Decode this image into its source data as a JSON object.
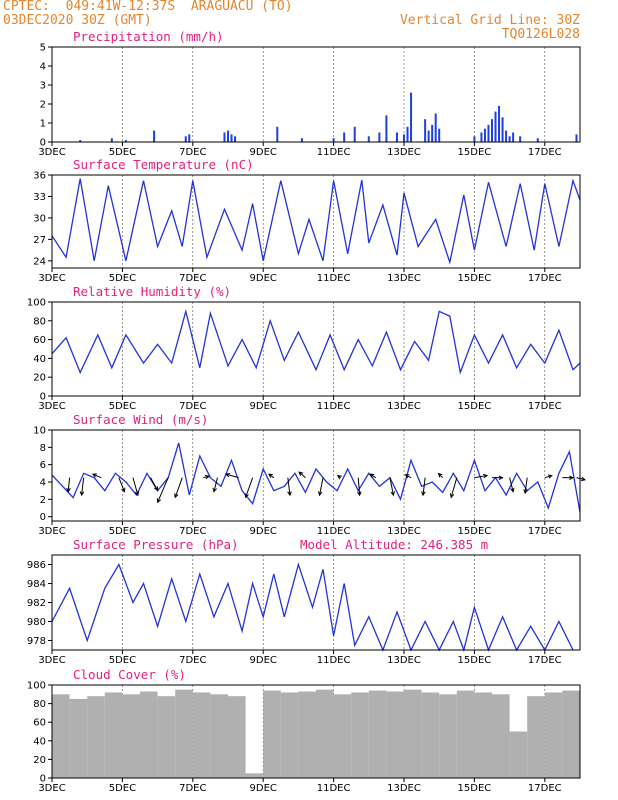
{
  "header": {
    "line1": "CPTEC:  049:41W-12:37S  ARAGUACU (TO)",
    "line2": "03DEC2020 30Z (GMT)",
    "grid_note": "Vertical Grid Line: 30Z",
    "code": "TQ0126L028"
  },
  "x_ticks": [
    "3DEC",
    "5DEC",
    "7DEC",
    "9DEC",
    "11DEC",
    "13DEC",
    "15DEC",
    "17DEC"
  ],
  "x_range_days": [
    3,
    18
  ],
  "chart_data": [
    {
      "type": "bar",
      "title": "Precipitation (mm/h)",
      "ylim": [
        0,
        5
      ],
      "yticks": [
        0,
        1,
        2,
        3,
        4,
        5
      ],
      "color": "#1f3fe0",
      "x": [
        3.8,
        4.7,
        5.1,
        5.9,
        6.8,
        6.9,
        7.9,
        8.0,
        8.1,
        8.2,
        9.4,
        10.1,
        11.0,
        11.3,
        11.6,
        12.0,
        12.3,
        12.5,
        12.8,
        13.0,
        13.1,
        13.2,
        13.6,
        13.7,
        13.8,
        13.9,
        14.0,
        15.0,
        15.2,
        15.3,
        15.4,
        15.5,
        15.6,
        15.7,
        15.8,
        15.9,
        16.0,
        16.1,
        16.3,
        16.8,
        17.9
      ],
      "values": [
        0.1,
        0.2,
        0.1,
        0.6,
        0.3,
        0.4,
        0.5,
        0.6,
        0.4,
        0.3,
        0.8,
        0.2,
        0.2,
        0.5,
        0.8,
        0.3,
        0.5,
        1.4,
        0.5,
        0.4,
        0.8,
        2.6,
        1.2,
        0.6,
        0.9,
        1.5,
        0.7,
        0.3,
        0.5,
        0.7,
        0.9,
        1.2,
        1.6,
        1.9,
        1.3,
        0.6,
        0.3,
        0.5,
        0.3,
        0.2,
        0.4
      ]
    },
    {
      "type": "line",
      "title": "Surface Temperature (nC)",
      "ylim": [
        23,
        36
      ],
      "yticks": [
        24,
        27,
        30,
        33,
        36
      ],
      "color": "#2233dd",
      "x": [
        3.0,
        3.4,
        3.8,
        4.2,
        4.6,
        5.1,
        5.6,
        6.0,
        6.4,
        6.7,
        7.0,
        7.4,
        7.9,
        8.4,
        8.7,
        9.0,
        9.5,
        10.0,
        10.3,
        10.7,
        11.0,
        11.4,
        11.8,
        12.0,
        12.4,
        12.8,
        13.0,
        13.4,
        13.9,
        14.3,
        14.7,
        15.0,
        15.4,
        15.9,
        16.3,
        16.7,
        17.0,
        17.4,
        17.8,
        18.0
      ],
      "values": [
        27.5,
        24.5,
        35.5,
        24.0,
        34.5,
        24.0,
        35.2,
        26.0,
        31.0,
        26.0,
        35.2,
        24.5,
        31.2,
        25.5,
        32.0,
        24.0,
        35.2,
        25.0,
        29.8,
        24.0,
        35.2,
        25.0,
        35.3,
        26.5,
        31.8,
        24.8,
        33.5,
        26.0,
        29.8,
        23.8,
        33.2,
        25.5,
        35.0,
        26.0,
        34.8,
        25.5,
        34.8,
        26.0,
        35.2,
        32.5
      ]
    },
    {
      "type": "line",
      "title": "Relative Humidity (%)",
      "ylim": [
        0,
        100
      ],
      "yticks": [
        0,
        20,
        40,
        60,
        80,
        100
      ],
      "color": "#2233dd",
      "x": [
        3.0,
        3.4,
        3.8,
        4.3,
        4.7,
        5.1,
        5.6,
        6.0,
        6.4,
        6.8,
        7.2,
        7.5,
        8.0,
        8.4,
        8.8,
        9.2,
        9.6,
        10.0,
        10.5,
        10.9,
        11.3,
        11.7,
        12.1,
        12.5,
        12.9,
        13.3,
        13.7,
        14.0,
        14.3,
        14.6,
        15.0,
        15.4,
        15.8,
        16.2,
        16.6,
        17.0,
        17.4,
        17.8,
        18.0
      ],
      "values": [
        45,
        62,
        25,
        65,
        30,
        65,
        35,
        55,
        35,
        90,
        30,
        88,
        32,
        60,
        30,
        80,
        38,
        68,
        28,
        65,
        28,
        60,
        32,
        68,
        28,
        58,
        38,
        90,
        85,
        25,
        65,
        35,
        65,
        30,
        55,
        35,
        70,
        28,
        35
      ]
    },
    {
      "type": "line",
      "title": "Surface Wind (m/s)",
      "ylim": [
        -0.5,
        10
      ],
      "yticks": [
        0,
        2,
        4,
        6,
        8,
        10
      ],
      "color": "#2233dd",
      "x": [
        3.0,
        3.3,
        3.6,
        3.9,
        4.2,
        4.5,
        4.8,
        5.1,
        5.4,
        5.7,
        6.0,
        6.3,
        6.6,
        6.9,
        7.2,
        7.5,
        7.8,
        8.1,
        8.4,
        8.7,
        9.0,
        9.3,
        9.6,
        9.9,
        10.2,
        10.5,
        10.8,
        11.1,
        11.4,
        11.7,
        12.0,
        12.3,
        12.6,
        12.9,
        13.2,
        13.5,
        13.8,
        14.1,
        14.4,
        14.7,
        15.0,
        15.3,
        15.6,
        15.9,
        16.2,
        16.5,
        16.8,
        17.1,
        17.4,
        17.7,
        18.0
      ],
      "values": [
        4.8,
        3.5,
        2.2,
        5.0,
        4.5,
        3.0,
        5.0,
        4.0,
        2.5,
        5.0,
        3.0,
        4.5,
        8.5,
        2.5,
        7.0,
        4.5,
        3.5,
        6.5,
        3.0,
        1.5,
        5.5,
        3.0,
        3.5,
        5.0,
        2.8,
        5.5,
        4.0,
        3.0,
        5.5,
        3.0,
        5.0,
        3.5,
        4.5,
        2.0,
        6.5,
        3.5,
        4.0,
        2.8,
        5.0,
        3.0,
        6.5,
        3.0,
        4.5,
        2.5,
        5.0,
        3.0,
        4.0,
        1.0,
        5.0,
        7.5,
        0.5
      ],
      "vector_x": [
        3.5,
        3.9,
        4.4,
        4.9,
        5.3,
        5.8,
        6.3,
        6.7,
        7.3,
        7.7,
        8.3,
        8.7,
        9.3,
        9.7,
        10.2,
        10.7,
        11.2,
        11.7,
        12.2,
        12.6,
        13.2,
        13.6,
        14.1,
        14.5,
        15.0,
        15.5,
        16.0,
        16.5,
        17.0,
        17.5,
        17.9
      ],
      "vector_u": [
        -0.2,
        -0.3,
        -1.2,
        0.8,
        0.7,
        1.0,
        -1.5,
        -1.0,
        0.8,
        -0.5,
        -1.8,
        -1.0,
        -0.7,
        0.3,
        -0.9,
        -0.5,
        -0.4,
        0.2,
        -0.8,
        0.5,
        -0.8,
        -0.3,
        -0.6,
        -0.8,
        1.8,
        1.5,
        0.5,
        -0.3,
        1.0,
        1.5,
        1.2
      ],
      "vector_v": [
        -2.0,
        -2.5,
        0.5,
        -2.0,
        -2.5,
        -1.8,
        -3.5,
        -2.8,
        0.2,
        -2.0,
        0.5,
        -2.8,
        0.5,
        -2.5,
        0.8,
        -2.5,
        0.3,
        -2.5,
        0.5,
        -2.5,
        0.4,
        -2.5,
        0.6,
        -2.8,
        0.3,
        0.0,
        -2.0,
        -2.2,
        0.3,
        0.0,
        -0.3
      ]
    },
    {
      "type": "line",
      "title": "Surface Pressure (hPa)",
      "subtitle": "Model Altitude: 246.385 m",
      "ylim": [
        977,
        987
      ],
      "yticks": [
        978,
        980,
        982,
        984,
        986
      ],
      "color": "#2233dd",
      "x": [
        3.0,
        3.5,
        4.0,
        4.5,
        4.9,
        5.3,
        5.6,
        6.0,
        6.4,
        6.8,
        7.2,
        7.6,
        8.0,
        8.4,
        8.7,
        9.0,
        9.3,
        9.6,
        10.0,
        10.4,
        10.7,
        11.0,
        11.3,
        11.6,
        12.0,
        12.4,
        12.8,
        13.2,
        13.6,
        14.0,
        14.4,
        14.7,
        15.0,
        15.4,
        15.8,
        16.2,
        16.6,
        17.0,
        17.4,
        17.8
      ],
      "values": [
        980.0,
        983.5,
        978.0,
        983.5,
        986.0,
        982.0,
        984.0,
        979.5,
        984.5,
        980.0,
        985.0,
        980.5,
        984.0,
        979.0,
        984.0,
        980.5,
        985.0,
        980.5,
        986.0,
        981.5,
        985.5,
        978.5,
        984.0,
        977.5,
        980.5,
        977.0,
        981.0,
        977.0,
        980.0,
        977.0,
        980.0,
        977.0,
        981.5,
        977.0,
        980.5,
        977.0,
        979.5,
        977.0,
        980.0,
        977.0
      ]
    },
    {
      "type": "bar",
      "title": "Cloud Cover (%)",
      "ylim": [
        0,
        100
      ],
      "yticks": [
        0,
        20,
        40,
        60,
        80,
        100
      ],
      "color": "#b0b0b0",
      "x": [
        3.0,
        3.5,
        4.0,
        4.5,
        5.0,
        5.5,
        6.0,
        6.5,
        7.0,
        7.5,
        8.0,
        8.5,
        9.0,
        9.5,
        10.0,
        10.5,
        11.0,
        11.5,
        12.0,
        12.5,
        13.0,
        13.5,
        14.0,
        14.5,
        15.0,
        15.5,
        16.0,
        16.5,
        17.0,
        17.5,
        18.0
      ],
      "values": [
        90,
        85,
        88,
        92,
        90,
        93,
        88,
        95,
        92,
        90,
        88,
        5,
        94,
        92,
        93,
        95,
        90,
        92,
        94,
        93,
        95,
        92,
        90,
        94,
        92,
        90,
        50,
        88,
        92,
        94,
        95
      ]
    }
  ]
}
